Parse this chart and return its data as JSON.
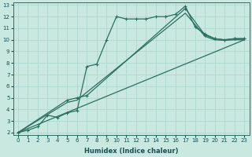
{
  "xlabel": "Humidex (Indice chaleur)",
  "bg_color": "#c8e8e0",
  "line_color": "#2a7060",
  "grid_color": "#b0d8d0",
  "xlim": [
    -0.5,
    23.5
  ],
  "ylim": [
    1.8,
    13.2
  ],
  "xticks": [
    0,
    1,
    2,
    3,
    4,
    5,
    6,
    7,
    8,
    9,
    10,
    11,
    12,
    13,
    14,
    15,
    16,
    17,
    18,
    19,
    20,
    21,
    22,
    23
  ],
  "yticks": [
    2,
    3,
    4,
    5,
    6,
    7,
    8,
    9,
    10,
    11,
    12,
    13
  ],
  "curve1_x": [
    0,
    1,
    2,
    3,
    4,
    5,
    6,
    7,
    8,
    9,
    10,
    11,
    12,
    13,
    14,
    15,
    16,
    17,
    18,
    19,
    20,
    21,
    22,
    23
  ],
  "curve1_y": [
    2.0,
    2.2,
    2.5,
    3.5,
    3.3,
    3.7,
    3.9,
    7.7,
    7.9,
    10.0,
    12.0,
    11.8,
    11.8,
    11.8,
    12.0,
    12.0,
    12.2,
    12.9,
    11.1,
    10.5,
    10.1,
    10.0,
    10.1,
    10.1
  ],
  "curve2_x": [
    0,
    5,
    6,
    7,
    17,
    19,
    20,
    21,
    22,
    23
  ],
  "curve2_y": [
    2.0,
    4.8,
    5.0,
    5.2,
    12.7,
    10.4,
    10.1,
    10.0,
    10.1,
    10.1
  ],
  "curve3_x": [
    0,
    5,
    6,
    17,
    19,
    20,
    21,
    22,
    23
  ],
  "curve3_y": [
    2.0,
    4.6,
    4.8,
    12.3,
    10.3,
    10.0,
    9.95,
    10.0,
    10.0
  ],
  "curve4_x": [
    0,
    23
  ],
  "curve4_y": [
    2.0,
    10.0
  ]
}
